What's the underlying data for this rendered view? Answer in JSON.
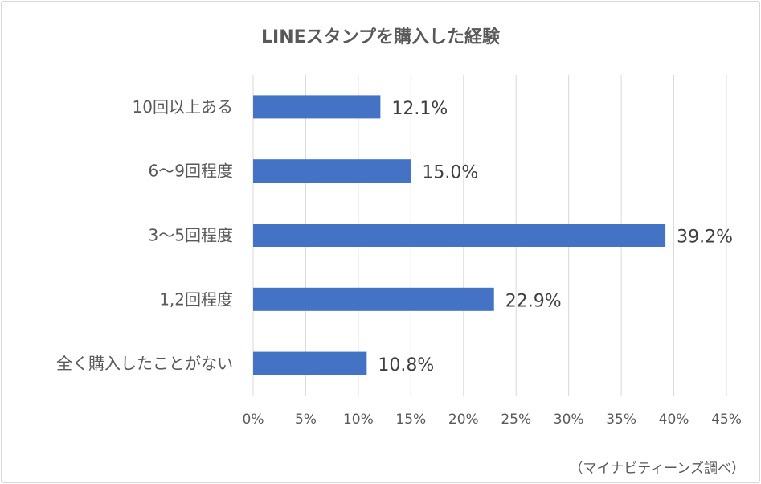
{
  "chart_data": {
    "type": "bar",
    "orientation": "horizontal",
    "title": "LINEスタンプを購入した経験",
    "categories": [
      "10回以上ある",
      "6〜9回程度",
      "3〜5回程度",
      "1,2回程度",
      "全く購入したことがない"
    ],
    "values": [
      12.1,
      15.0,
      39.2,
      22.9,
      10.8
    ],
    "data_labels": [
      "12.1%",
      "15.0%",
      "39.2%",
      "22.9%",
      "10.8%"
    ],
    "x_ticks": [
      "0%",
      "5%",
      "10%",
      "15%",
      "20%",
      "25%",
      "30%",
      "35%",
      "40%",
      "45%"
    ],
    "xlim": [
      0,
      45
    ],
    "grid": true,
    "bar_color": "#4472c4"
  },
  "note": "（マイナビティーンズ調べ）"
}
